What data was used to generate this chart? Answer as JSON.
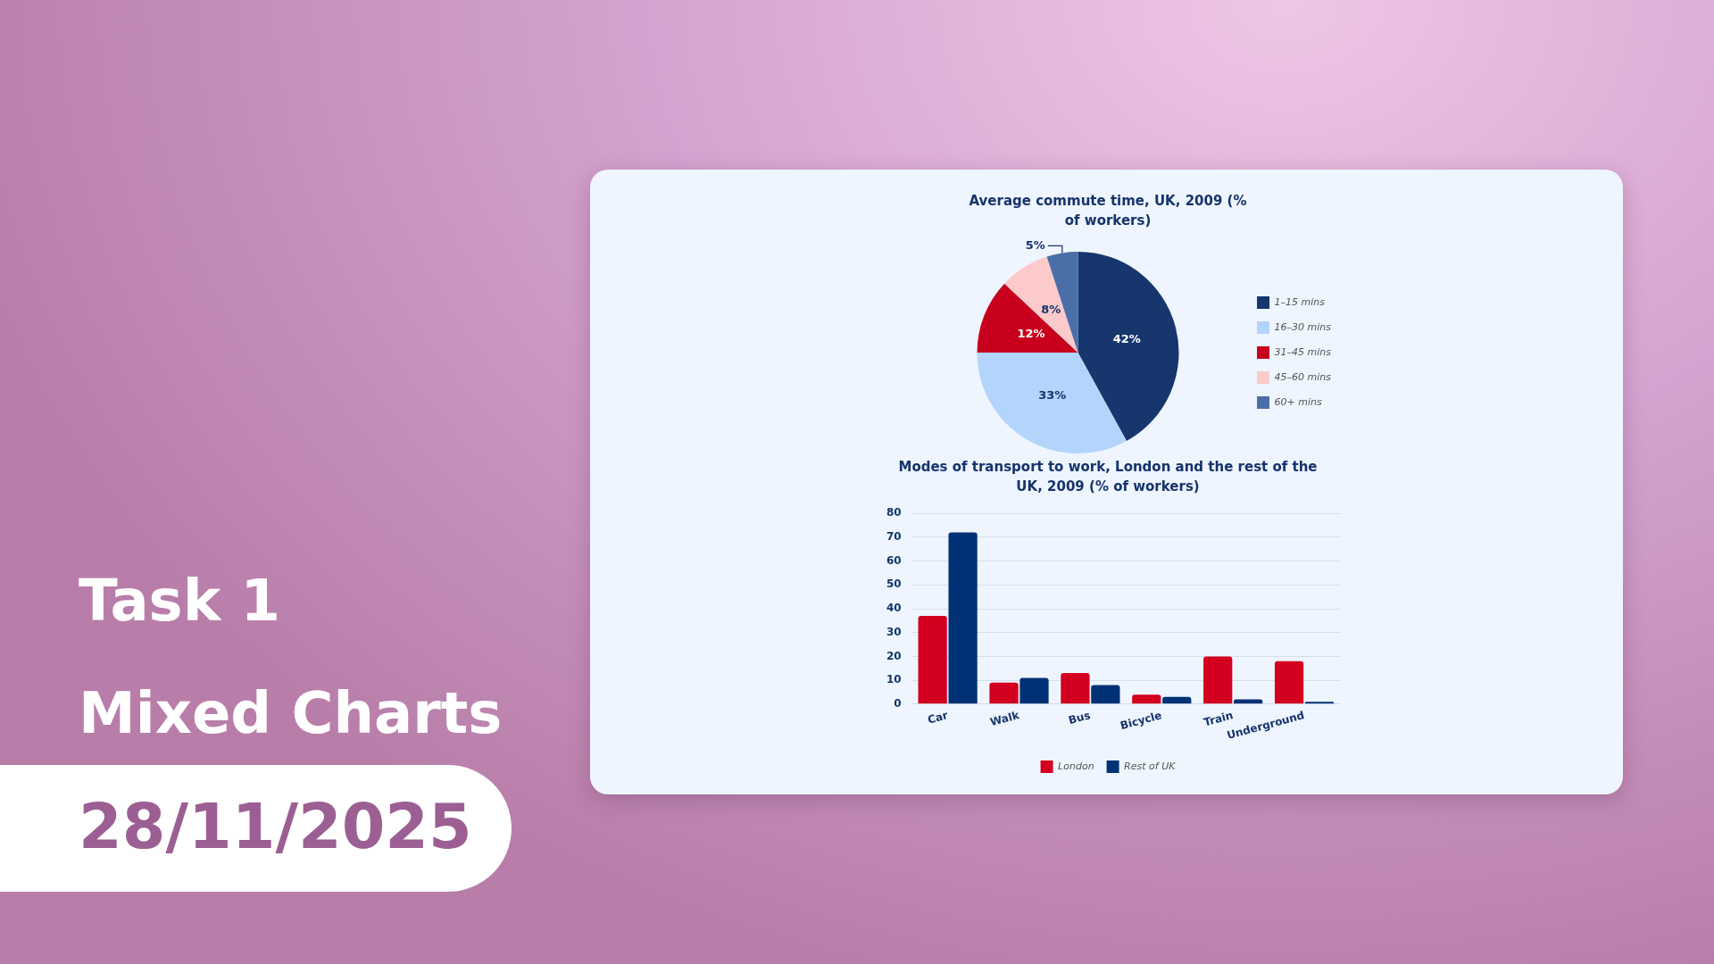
{
  "chart_data": [
    {
      "type": "other",
      "annotations": [
        "Task 1",
        "Mixed Charts",
        "28/11/2025"
      ]
    },
    {
      "type": "pie",
      "title": "Average commute time, UK, 2009 (% of workers)",
      "categories": [
        "1–15 mins",
        "16–30 mins",
        "31–45 mins",
        "45–60 mins",
        "60+ mins"
      ],
      "values": [
        42,
        33,
        12,
        8,
        5
      ],
      "value_labels": [
        "42%",
        "33%",
        "12%",
        "8%",
        "5%"
      ],
      "colors": [
        "#17366e",
        "#b3d4fb",
        "#c8001e",
        "#fccaca",
        "#4a6fa8"
      ],
      "legend": "right"
    },
    {
      "type": "bar",
      "title": "Modes of transport to work, London and the rest of the UK, 2009 (% of workers)",
      "categories": [
        "Car",
        "Walk",
        "Bus",
        "Bicycle",
        "Train",
        "Underground"
      ],
      "series": [
        {
          "name": "London",
          "color": "#d3001f",
          "values": [
            37,
            9,
            13,
            4,
            20,
            18
          ]
        },
        {
          "name": "Rest of UK",
          "color": "#003174",
          "values": [
            72,
            11,
            8,
            3,
            2,
            1
          ]
        }
      ],
      "ylim": [
        0,
        80
      ],
      "yticks": [
        0,
        10,
        20,
        30,
        40,
        50,
        60,
        70,
        80
      ],
      "grid": "y",
      "legend": "bottom"
    }
  ]
}
